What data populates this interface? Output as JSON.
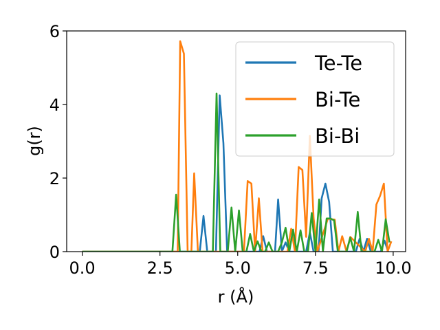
{
  "chart_data": {
    "type": "line",
    "title": "",
    "xlabel": "r (Å)",
    "ylabel": "g(r)",
    "xlim": [
      -0.5,
      10.4
    ],
    "ylim": [
      0,
      6
    ],
    "xticks": [
      0.0,
      2.5,
      5.0,
      7.5,
      10.0
    ],
    "xtick_labels": [
      "0.0",
      "2.5",
      "5.0",
      "7.5",
      "10.0"
    ],
    "yticks": [
      0,
      2,
      4,
      6
    ],
    "ytick_labels": [
      "0",
      "2",
      "4",
      "6"
    ],
    "grid": false,
    "legend_position": "top-right",
    "series": [
      {
        "name": "Te-Te",
        "color": "#1f77b4",
        "x": [
          0,
          2.9,
          3.78,
          3.9,
          4.02,
          4.3,
          4.42,
          4.54,
          4.66,
          4.78,
          5.7,
          5.82,
          5.94,
          6.2,
          6.3,
          6.42,
          6.54,
          6.66,
          7.2,
          7.32,
          7.44,
          7.6,
          7.7,
          7.82,
          7.94,
          8.06,
          8.8,
          8.92,
          9.04,
          9.16,
          9.28,
          9.6,
          9.72,
          9.84
        ],
        "y": [
          0,
          0,
          0,
          0.97,
          0,
          0,
          4.25,
          2.95,
          0,
          0,
          0,
          0.42,
          0,
          0,
          1.42,
          0,
          0.25,
          0,
          0,
          0.52,
          0,
          0,
          1.45,
          1.85,
          1.35,
          0,
          0,
          0.35,
          0,
          0.35,
          0,
          0,
          0.3,
          0
        ]
      },
      {
        "name": "Bi-Te",
        "color": "#ff7f0e",
        "x": [
          0,
          2.95,
          3.07,
          3.15,
          3.27,
          3.39,
          3.51,
          3.6,
          3.72,
          3.84,
          5.2,
          5.32,
          5.44,
          5.56,
          5.68,
          5.8,
          5.92,
          6.6,
          6.72,
          6.84,
          6.96,
          7.08,
          7.2,
          7.32,
          7.44,
          7.56,
          7.9,
          8.0,
          8.12,
          8.24,
          8.36,
          8.5,
          8.62,
          9.1,
          9.22,
          9.34,
          9.46,
          9.58,
          9.7,
          9.82,
          9.94
        ],
        "y": [
          0,
          0,
          0,
          5.72,
          5.38,
          0,
          0,
          2.13,
          0,
          0,
          0,
          1.92,
          1.85,
          0,
          1.45,
          0,
          0,
          0,
          0.62,
          0,
          2.3,
          2.22,
          0.4,
          3.15,
          0.92,
          0,
          0.9,
          0.88,
          0.87,
          0,
          0.42,
          0,
          0.4,
          0,
          0.35,
          0,
          1.28,
          1.52,
          1.85,
          0,
          0.28
        ]
      },
      {
        "name": "Bi-Bi",
        "color": "#2ca02c",
        "x": [
          0,
          2.9,
          3.02,
          3.14,
          3.26,
          4.2,
          4.32,
          4.44,
          4.56,
          4.68,
          4.8,
          4.92,
          5.04,
          5.16,
          5.28,
          5.4,
          5.52,
          5.64,
          5.76,
          5.88,
          6.0,
          6.12,
          6.3,
          6.42,
          6.54,
          6.66,
          6.78,
          6.9,
          7.02,
          7.14,
          7.26,
          7.38,
          7.5,
          7.62,
          7.74,
          7.86,
          7.98,
          8.1,
          8.22,
          8.5,
          8.62,
          8.74,
          8.86,
          8.98,
          9.1,
          9.4,
          9.52,
          9.64,
          9.76,
          9.88
        ],
        "y": [
          0,
          0,
          1.55,
          0,
          0,
          0,
          4.3,
          0,
          0,
          0,
          1.2,
          0,
          1.12,
          0,
          0,
          0.48,
          0,
          0.28,
          0,
          0,
          0.25,
          0,
          0,
          0.25,
          0.65,
          0,
          0.6,
          0,
          0.58,
          0,
          0,
          1.05,
          0,
          1.42,
          0,
          0.9,
          0.9,
          0.85,
          0,
          0,
          0.38,
          0,
          1.08,
          0,
          0,
          0,
          0.32,
          0,
          0.88,
          0.25
        ]
      }
    ]
  }
}
